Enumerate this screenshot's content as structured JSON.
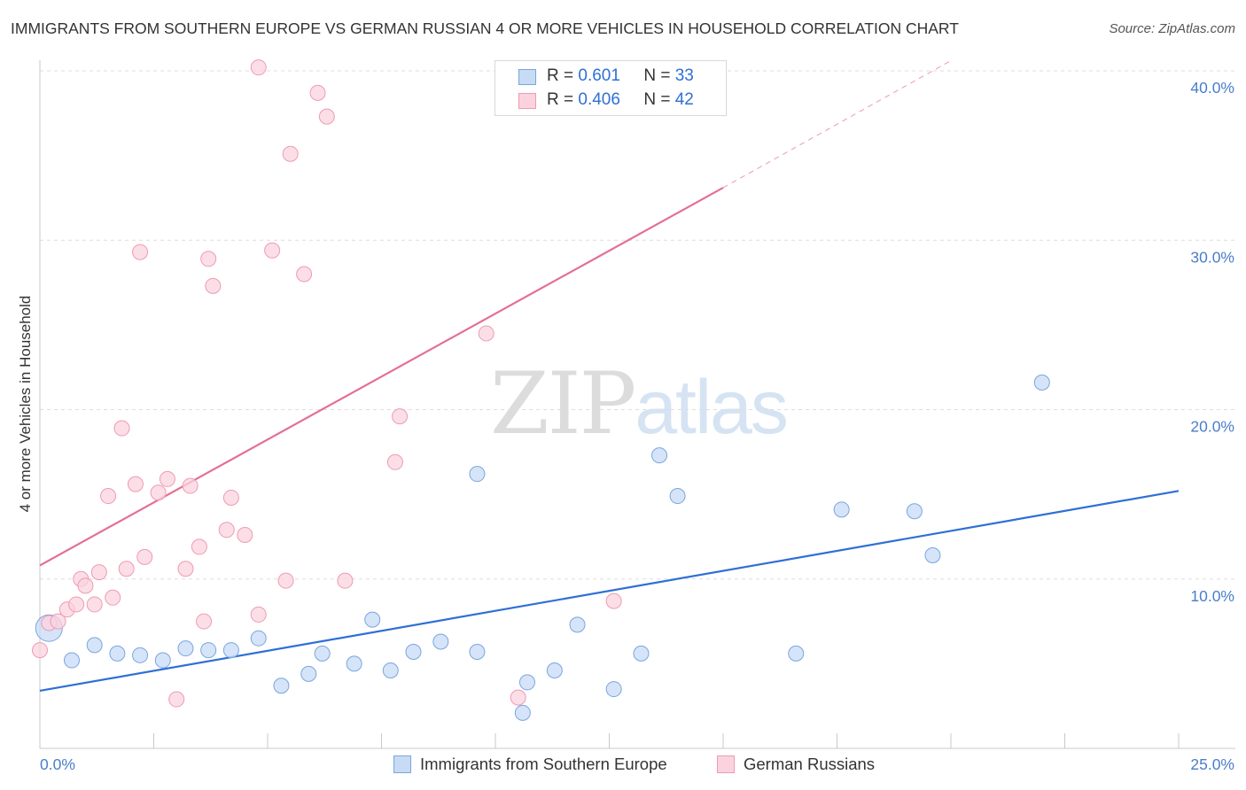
{
  "title": "IMMIGRANTS FROM SOUTHERN EUROPE VS GERMAN RUSSIAN 4 OR MORE VEHICLES IN HOUSEHOLD CORRELATION CHART",
  "source": "Source: ZipAtlas.com",
  "watermark": {
    "zip": "ZIP",
    "atlas": "atlas"
  },
  "colors": {
    "blue": "#2f6fd6",
    "pink": "#e46f95",
    "blue_fill": "#c7dbf5",
    "pink_fill": "#fbd3df"
  },
  "legend": {
    "rows": [
      {
        "r_label": "R =",
        "r_value": "0.601",
        "n_label": "N =",
        "n_value": "33"
      },
      {
        "r_label": "R =",
        "r_value": "0.406",
        "n_label": "N =",
        "n_value": "42"
      }
    ]
  },
  "bottom_legend": {
    "blue_label": "Immigrants from Southern Europe",
    "pink_label": "German Russians"
  },
  "chart_data": {
    "type": "scatter",
    "title": "IMMIGRANTS FROM SOUTHERN EUROPE VS GERMAN RUSSIAN 4 OR MORE VEHICLES IN HOUSEHOLD CORRELATION CHART",
    "xlabel": "",
    "ylabel": "4 or more Vehicles in Household",
    "xlim": [
      0,
      25
    ],
    "ylim": [
      0,
      40
    ],
    "x_tick_labels": [
      "0.0%",
      "25.0%"
    ],
    "y_ticks": [
      10,
      20,
      30,
      40
    ],
    "y_tick_labels": [
      "10.0%",
      "20.0%",
      "30.0%",
      "40.0%"
    ],
    "grid": "horizontal dashed",
    "legend_placement": "top-center",
    "series": [
      {
        "name": "Immigrants from Southern Europe",
        "color": "#2f6fd6",
        "points": [
          [
            0.2,
            7.1
          ],
          [
            0.7,
            5.2
          ],
          [
            1.2,
            6.1
          ],
          [
            1.7,
            5.6
          ],
          [
            2.2,
            5.5
          ],
          [
            2.7,
            5.2
          ],
          [
            3.2,
            5.9
          ],
          [
            3.7,
            5.8
          ],
          [
            4.2,
            5.8
          ],
          [
            4.8,
            6.5
          ],
          [
            5.3,
            3.7
          ],
          [
            5.9,
            4.4
          ],
          [
            6.2,
            5.6
          ],
          [
            6.9,
            5.0
          ],
          [
            7.3,
            7.6
          ],
          [
            7.7,
            4.6
          ],
          [
            8.2,
            5.7
          ],
          [
            8.8,
            6.3
          ],
          [
            9.6,
            16.2
          ],
          [
            9.6,
            5.7
          ],
          [
            10.6,
            2.1
          ],
          [
            10.7,
            3.9
          ],
          [
            11.3,
            4.6
          ],
          [
            11.8,
            7.3
          ],
          [
            12.6,
            3.5
          ],
          [
            13.2,
            5.6
          ],
          [
            13.6,
            17.3
          ],
          [
            14.0,
            14.9
          ],
          [
            16.6,
            5.6
          ],
          [
            17.6,
            14.1
          ],
          [
            19.2,
            14.0
          ],
          [
            19.6,
            11.4
          ],
          [
            22.0,
            21.6
          ]
        ],
        "trend": {
          "x": [
            0,
            25
          ],
          "y": [
            3.4,
            15.2
          ]
        }
      },
      {
        "name": "German Russians",
        "color": "#e46f95",
        "points": [
          [
            0.0,
            5.8
          ],
          [
            0.2,
            7.4
          ],
          [
            0.4,
            7.5
          ],
          [
            0.6,
            8.2
          ],
          [
            0.8,
            8.5
          ],
          [
            0.9,
            10.0
          ],
          [
            1.0,
            9.6
          ],
          [
            1.2,
            8.5
          ],
          [
            1.3,
            10.4
          ],
          [
            1.5,
            14.9
          ],
          [
            1.6,
            8.9
          ],
          [
            1.8,
            18.9
          ],
          [
            1.9,
            10.6
          ],
          [
            2.1,
            15.6
          ],
          [
            2.2,
            29.3
          ],
          [
            2.3,
            11.3
          ],
          [
            2.6,
            15.1
          ],
          [
            2.8,
            15.9
          ],
          [
            3.0,
            2.9
          ],
          [
            3.2,
            10.6
          ],
          [
            3.3,
            15.5
          ],
          [
            3.5,
            11.9
          ],
          [
            3.6,
            7.5
          ],
          [
            3.7,
            28.9
          ],
          [
            3.8,
            27.3
          ],
          [
            4.1,
            12.9
          ],
          [
            4.2,
            14.8
          ],
          [
            4.5,
            12.6
          ],
          [
            4.8,
            7.9
          ],
          [
            5.1,
            29.4
          ],
          [
            5.4,
            9.9
          ],
          [
            5.5,
            35.1
          ],
          [
            5.8,
            28.0
          ],
          [
            6.1,
            38.7
          ],
          [
            6.3,
            37.3
          ],
          [
            6.7,
            9.9
          ],
          [
            7.8,
            16.9
          ],
          [
            7.9,
            19.6
          ],
          [
            9.8,
            24.5
          ],
          [
            12.6,
            8.7
          ],
          [
            4.8,
            40.2
          ],
          [
            10.5,
            3.0
          ]
        ],
        "trend": {
          "x": [
            0,
            15.0
          ],
          "y": [
            10.8,
            33.1
          ],
          "dashed_extension": {
            "x": [
              15.0,
              20.0
            ],
            "y": [
              33.1,
              40.6
            ]
          }
        }
      }
    ]
  }
}
